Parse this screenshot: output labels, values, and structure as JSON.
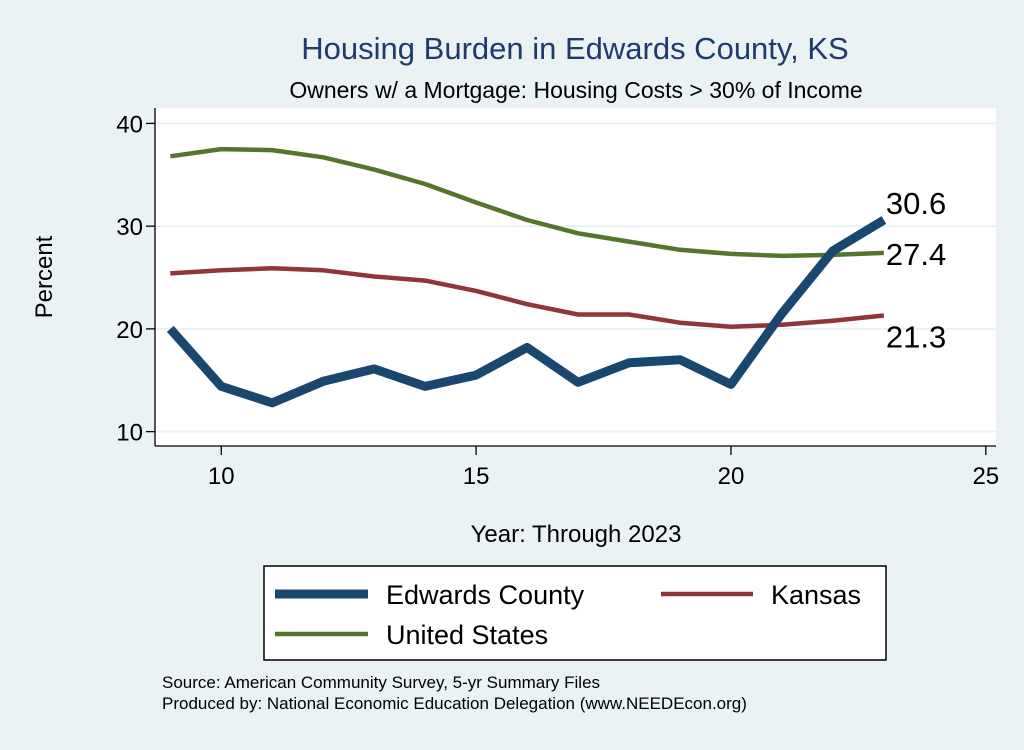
{
  "chart_data": {
    "type": "line",
    "title": "Housing Burden in Edwards County, KS",
    "subtitle": "Owners w/ a Mortgage: Housing Costs > 30% of Income",
    "xlabel": "Year: Through 2023",
    "ylabel": "Percent",
    "xlim": [
      8.7,
      25.2
    ],
    "ylim": [
      8.6,
      41.5
    ],
    "xticks": [
      10,
      15,
      20,
      25
    ],
    "yticks": [
      10,
      20,
      30,
      40
    ],
    "grid": true,
    "legend_position": "bottom",
    "series": [
      {
        "name": "Edwards County",
        "color": "#1a476f",
        "x": [
          9,
          10,
          11,
          12,
          13,
          14,
          15,
          16,
          17,
          18,
          19,
          20,
          21,
          22,
          23
        ],
        "y": [
          20.0,
          14.4,
          12.8,
          14.9,
          16.1,
          14.4,
          15.5,
          18.2,
          14.8,
          16.7,
          17.0,
          14.6,
          21.5,
          27.6,
          30.6
        ],
        "end_label": "30.6"
      },
      {
        "name": "Kansas",
        "color": "#90353b",
        "x": [
          9,
          10,
          11,
          12,
          13,
          14,
          15,
          16,
          17,
          18,
          19,
          20,
          21,
          22,
          23
        ],
        "y": [
          25.4,
          25.7,
          25.9,
          25.7,
          25.1,
          24.7,
          23.7,
          22.4,
          21.4,
          21.4,
          20.6,
          20.2,
          20.4,
          20.8,
          21.3
        ],
        "end_label": "21.3"
      },
      {
        "name": "United States",
        "color": "#55752f",
        "x": [
          9,
          10,
          11,
          12,
          13,
          14,
          15,
          16,
          17,
          18,
          19,
          20,
          21,
          22,
          23
        ],
        "y": [
          36.8,
          37.5,
          37.4,
          36.7,
          35.5,
          34.1,
          32.3,
          30.6,
          29.3,
          28.5,
          27.7,
          27.3,
          27.1,
          27.2,
          27.4
        ],
        "end_label": "27.4"
      }
    ]
  },
  "source_note": "Source: American Community Survey, 5-yr Summary Files",
  "producer_note": "Produced by: National Economic Education Delegation (www.NEEDEcon.org)"
}
